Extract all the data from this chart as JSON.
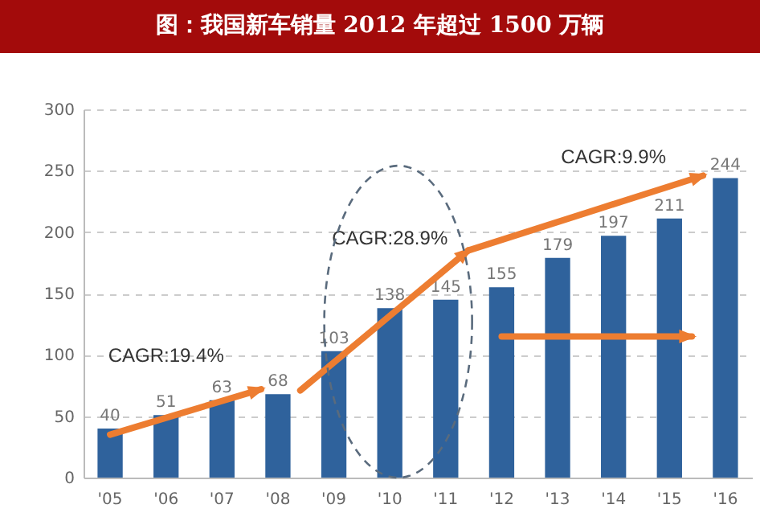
{
  "chart_data": {
    "type": "bar",
    "title": "图：我国新车销量 2012 年超过 1500 万辆",
    "categories": [
      "'05",
      "'06",
      "'07",
      "'08",
      "'09",
      "'10",
      "'11",
      "'12",
      "'13",
      "'14",
      "'15",
      "'16"
    ],
    "values": [
      40,
      51,
      63,
      68,
      103,
      138,
      145,
      155,
      179,
      197,
      211,
      244
    ],
    "color": "#2f629c",
    "data_labels": true,
    "ylim": [
      0,
      300
    ],
    "yticks": [
      0,
      50,
      100,
      150,
      200,
      250,
      300
    ],
    "grid": "y",
    "annotations": [
      "CAGR:19.4%",
      "CAGR:28.9%",
      "CAGR:9.9%"
    ]
  }
}
